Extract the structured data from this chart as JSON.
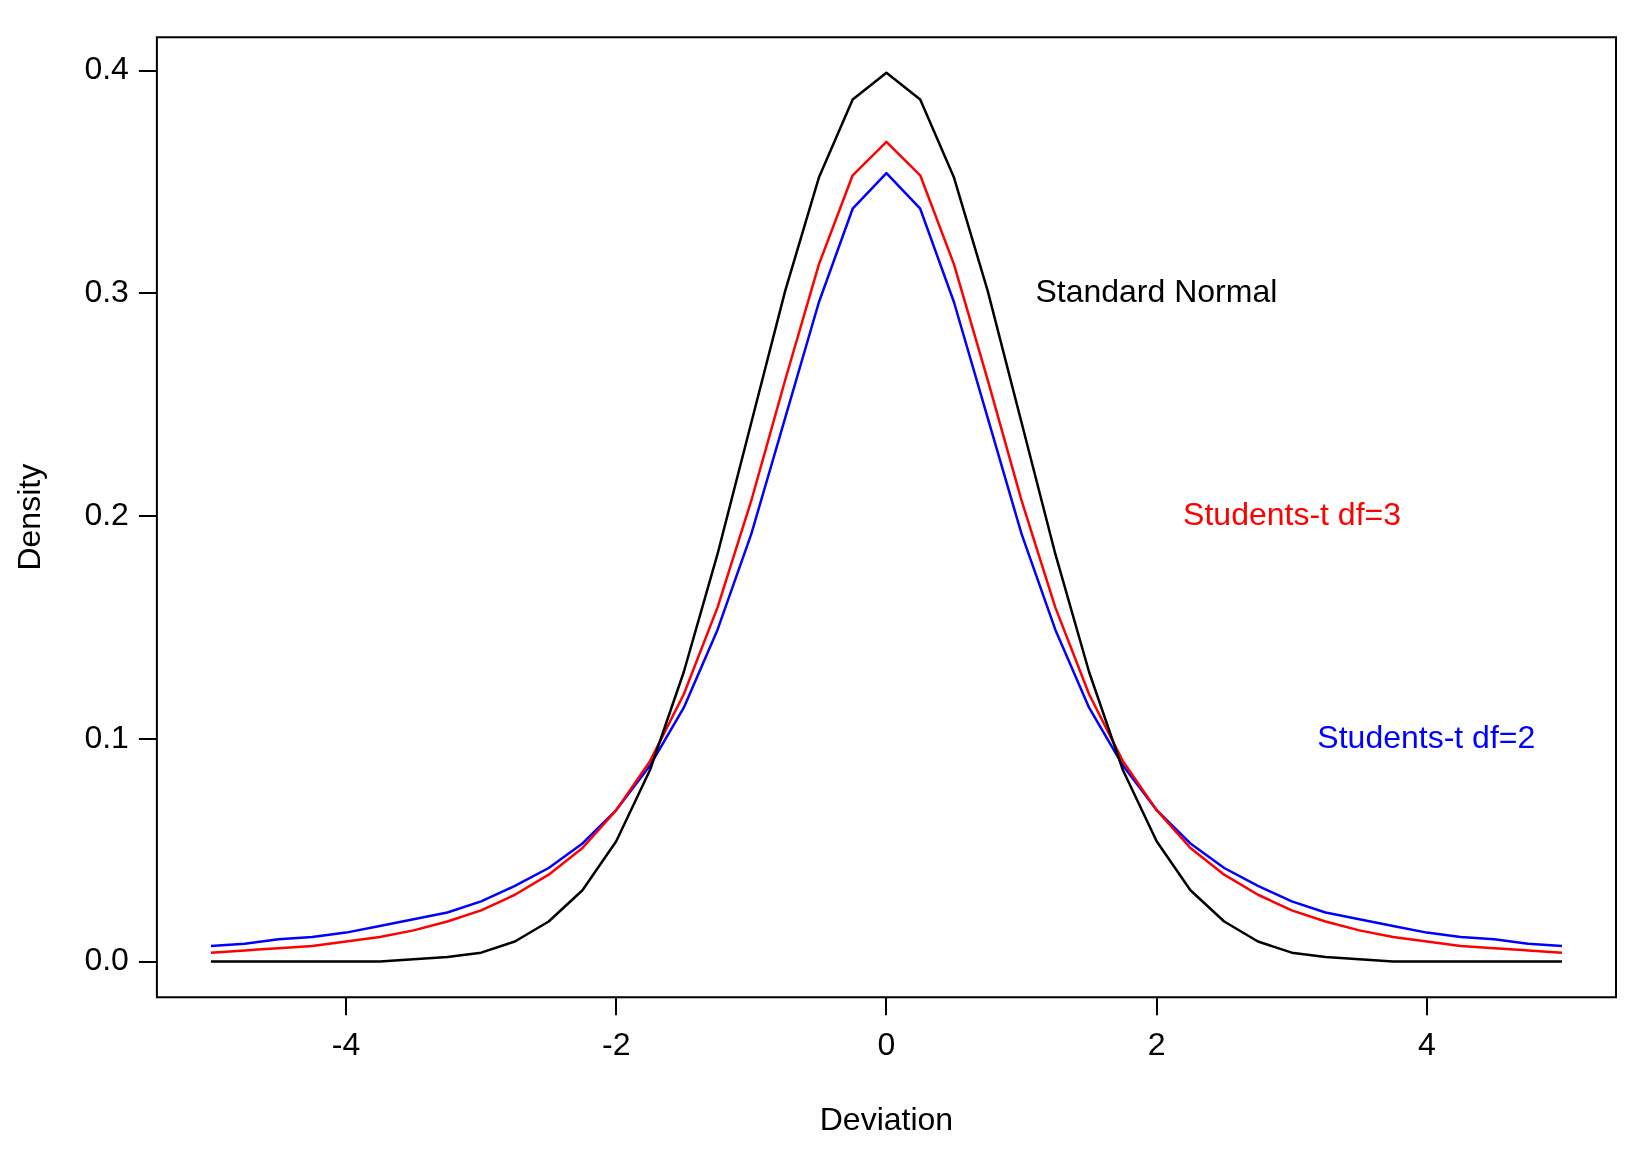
{
  "chart_data": {
    "type": "line",
    "xlabel": "Deviation",
    "ylabel": "Density",
    "x": [
      -5,
      -4.75,
      -4.5,
      -4.25,
      -4,
      -3.75,
      -3.5,
      -3.25,
      -3,
      -2.75,
      -2.5,
      -2.25,
      -2,
      -1.75,
      -1.5,
      -1.25,
      -1,
      -0.75,
      -0.5,
      -0.25,
      0,
      0.25,
      0.5,
      0.75,
      1,
      1.25,
      1.5,
      1.75,
      2,
      2.25,
      2.5,
      2.75,
      3,
      3.25,
      3.5,
      3.75,
      4,
      4.25,
      4.5,
      4.75,
      5
    ],
    "series": [
      {
        "name": "Standard Normal",
        "color": "#000000",
        "values": [
          0,
          0,
          0,
          0,
          0,
          0,
          0.001,
          0.002,
          0.004,
          0.009,
          0.018,
          0.032,
          0.054,
          0.086,
          0.13,
          0.183,
          0.242,
          0.301,
          0.352,
          0.387,
          0.399,
          0.387,
          0.352,
          0.301,
          0.242,
          0.183,
          0.13,
          0.086,
          0.054,
          0.032,
          0.018,
          0.009,
          0.004,
          0.002,
          0.001,
          0,
          0,
          0,
          0,
          0,
          0
        ]
      },
      {
        "name": "Students-t df=3",
        "color": "#ff0000",
        "values": [
          0.004,
          0.005,
          0.006,
          0.007,
          0.009,
          0.011,
          0.014,
          0.018,
          0.023,
          0.03,
          0.039,
          0.051,
          0.068,
          0.09,
          0.12,
          0.159,
          0.207,
          0.261,
          0.313,
          0.353,
          0.368,
          0.353,
          0.313,
          0.261,
          0.207,
          0.159,
          0.12,
          0.09,
          0.068,
          0.051,
          0.039,
          0.03,
          0.023,
          0.018,
          0.014,
          0.011,
          0.009,
          0.007,
          0.006,
          0.005,
          0.004
        ]
      },
      {
        "name": "Students-t df=2",
        "color": "#0000ff",
        "values": [
          0.007,
          0.008,
          0.01,
          0.011,
          0.013,
          0.016,
          0.019,
          0.022,
          0.027,
          0.034,
          0.042,
          0.053,
          0.068,
          0.088,
          0.114,
          0.149,
          0.192,
          0.244,
          0.296,
          0.338,
          0.354,
          0.338,
          0.296,
          0.244,
          0.192,
          0.149,
          0.114,
          0.088,
          0.068,
          0.053,
          0.042,
          0.034,
          0.027,
          0.022,
          0.019,
          0.016,
          0.013,
          0.011,
          0.01,
          0.008,
          0.007
        ]
      }
    ],
    "xlim": [
      -5.4,
      5.4
    ],
    "xticks": [
      -4,
      -2,
      0,
      2,
      4
    ],
    "ylim": [
      -0.016,
      0.415
    ],
    "yticks": [
      {
        "value": 0,
        "label": "0.0"
      },
      {
        "value": 0.1,
        "label": "0.1"
      },
      {
        "value": 0.2,
        "label": "0.2"
      },
      {
        "value": 0.3,
        "label": "0.3"
      },
      {
        "value": 0.4,
        "label": "0.4"
      }
    ],
    "grid": false,
    "legend": false,
    "marker": "none",
    "line_style": "solid"
  }
}
